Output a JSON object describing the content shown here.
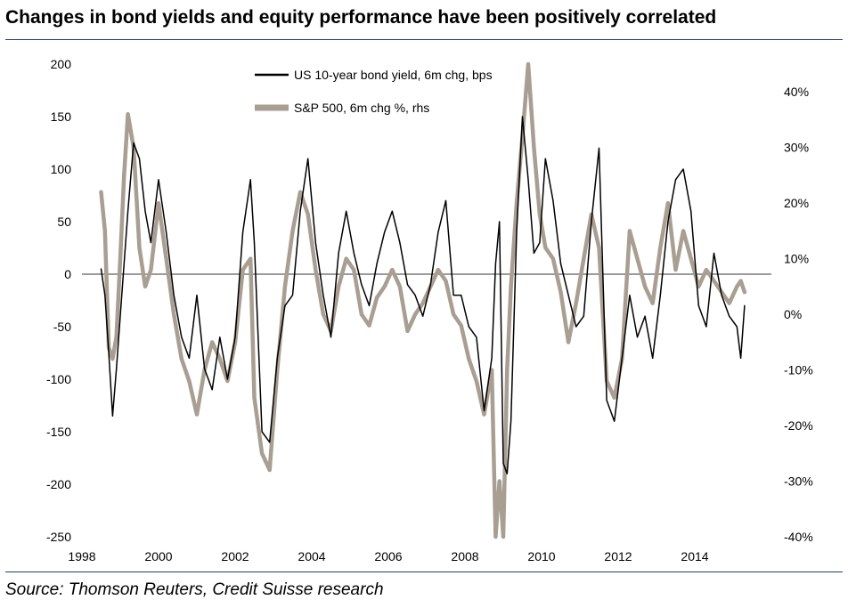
{
  "title": "Changes in bond yields and equity performance have been positively correlated",
  "source": "Source: Thomson Reuters, Credit Suisse research",
  "colors": {
    "bond": "#000000",
    "spx": "#a89e92",
    "zero_line": "#7a7a7a",
    "rule": "#1f3f6e"
  },
  "chart_data": {
    "type": "line",
    "title": "Changes in bond yields and equity performance have been positively correlated",
    "x_ticks": [
      "1998",
      "2000",
      "2002",
      "2004",
      "2006",
      "2008",
      "2010",
      "2012",
      "2014"
    ],
    "x_range": [
      1998,
      2016
    ],
    "y_left": {
      "ticks": [
        "200",
        "150",
        "100",
        "50",
        "0",
        "-50",
        "-100",
        "-150",
        "-200",
        "-250"
      ],
      "range": [
        -250,
        200
      ]
    },
    "y_right": {
      "ticks": [
        "40%",
        "30%",
        "20%",
        "10%",
        "0%",
        "-10%",
        "-20%",
        "-30%",
        "-40%"
      ],
      "range": [
        -40,
        45
      ]
    },
    "legend": {
      "position": "top-center"
    },
    "series": [
      {
        "name": "US 10-year bond yield, 6m chg, bps",
        "axis": "left",
        "x": [
          1998.5,
          1998.6,
          1998.7,
          1998.8,
          1998.9,
          1999.0,
          1999.1,
          1999.2,
          1999.35,
          1999.5,
          1999.65,
          1999.8,
          2000.0,
          2000.2,
          2000.4,
          2000.6,
          2000.8,
          2001.0,
          2001.2,
          2001.4,
          2001.6,
          2001.8,
          2002.0,
          2002.2,
          2002.4,
          2002.5,
          2002.7,
          2002.9,
          2003.1,
          2003.3,
          2003.5,
          2003.7,
          2003.9,
          2004.1,
          2004.3,
          2004.5,
          2004.7,
          2004.9,
          2005.1,
          2005.3,
          2005.5,
          2005.7,
          2005.9,
          2006.1,
          2006.3,
          2006.5,
          2006.7,
          2006.9,
          2007.1,
          2007.3,
          2007.5,
          2007.7,
          2007.9,
          2008.1,
          2008.3,
          2008.5,
          2008.7,
          2008.8,
          2008.9,
          2009.0,
          2009.1,
          2009.2,
          2009.35,
          2009.5,
          2009.65,
          2009.8,
          2009.95,
          2010.1,
          2010.3,
          2010.5,
          2010.7,
          2010.9,
          2011.1,
          2011.3,
          2011.5,
          2011.7,
          2011.9,
          2012.1,
          2012.3,
          2012.5,
          2012.7,
          2012.9,
          2013.1,
          2013.3,
          2013.5,
          2013.7,
          2013.9,
          2014.1,
          2014.3,
          2014.5,
          2014.7,
          2014.9,
          2015.1,
          2015.2,
          2015.3
        ],
        "values": [
          5,
          -20,
          -75,
          -135,
          -90,
          -40,
          10,
          60,
          125,
          110,
          60,
          30,
          90,
          40,
          -20,
          -60,
          -80,
          -20,
          -90,
          -110,
          -60,
          -100,
          -60,
          40,
          90,
          30,
          -150,
          -160,
          -80,
          -30,
          -20,
          60,
          110,
          30,
          -20,
          -60,
          20,
          60,
          20,
          -10,
          -30,
          10,
          40,
          60,
          30,
          -10,
          -20,
          -40,
          -10,
          40,
          70,
          -20,
          -20,
          -50,
          -60,
          -130,
          -80,
          10,
          50,
          -180,
          -190,
          -140,
          40,
          150,
          90,
          20,
          30,
          110,
          70,
          10,
          -20,
          -50,
          -40,
          50,
          120,
          -120,
          -140,
          -80,
          -20,
          -60,
          -40,
          -80,
          -20,
          50,
          90,
          100,
          60,
          -30,
          -50,
          20,
          -20,
          -40,
          -50,
          -80,
          -30
        ]
      },
      {
        "name": "S&P 500, 6m chg %, rhs",
        "axis": "right",
        "x": [
          1998.5,
          1998.6,
          1998.7,
          1998.8,
          1998.9,
          1999.0,
          1999.1,
          1999.2,
          1999.35,
          1999.5,
          1999.65,
          1999.8,
          2000.0,
          2000.2,
          2000.4,
          2000.6,
          2000.8,
          2001.0,
          2001.2,
          2001.4,
          2001.6,
          2001.8,
          2002.0,
          2002.2,
          2002.4,
          2002.5,
          2002.7,
          2002.9,
          2003.1,
          2003.3,
          2003.5,
          2003.7,
          2003.9,
          2004.1,
          2004.3,
          2004.5,
          2004.7,
          2004.9,
          2005.1,
          2005.3,
          2005.5,
          2005.7,
          2005.9,
          2006.1,
          2006.3,
          2006.5,
          2006.7,
          2006.9,
          2007.1,
          2007.3,
          2007.5,
          2007.7,
          2007.9,
          2008.1,
          2008.3,
          2008.5,
          2008.7,
          2008.8,
          2008.9,
          2009.0,
          2009.1,
          2009.2,
          2009.35,
          2009.5,
          2009.65,
          2009.8,
          2009.95,
          2010.1,
          2010.3,
          2010.5,
          2010.7,
          2010.9,
          2011.1,
          2011.3,
          2011.5,
          2011.7,
          2011.9,
          2012.1,
          2012.3,
          2012.5,
          2012.7,
          2012.9,
          2013.1,
          2013.3,
          2013.5,
          2013.7,
          2013.9,
          2014.1,
          2014.3,
          2014.5,
          2014.7,
          2014.9,
          2015.1,
          2015.2,
          2015.3
        ],
        "values": [
          22,
          15,
          -6,
          -8,
          -4,
          10,
          25,
          36,
          30,
          12,
          5,
          8,
          20,
          10,
          0,
          -8,
          -12,
          -18,
          -10,
          -5,
          -8,
          -12,
          -5,
          8,
          10,
          -15,
          -25,
          -28,
          -10,
          5,
          15,
          22,
          18,
          8,
          0,
          -3,
          5,
          10,
          8,
          0,
          -2,
          3,
          5,
          8,
          5,
          -3,
          0,
          2,
          5,
          8,
          6,
          0,
          -2,
          -8,
          -12,
          -18,
          -10,
          -40,
          -30,
          -40,
          -10,
          5,
          20,
          32,
          45,
          30,
          18,
          12,
          10,
          4,
          -5,
          2,
          10,
          18,
          12,
          -12,
          -15,
          -8,
          15,
          10,
          5,
          2,
          12,
          20,
          8,
          15,
          10,
          5,
          8,
          6,
          4,
          2,
          5,
          6,
          4
        ]
      }
    ]
  }
}
